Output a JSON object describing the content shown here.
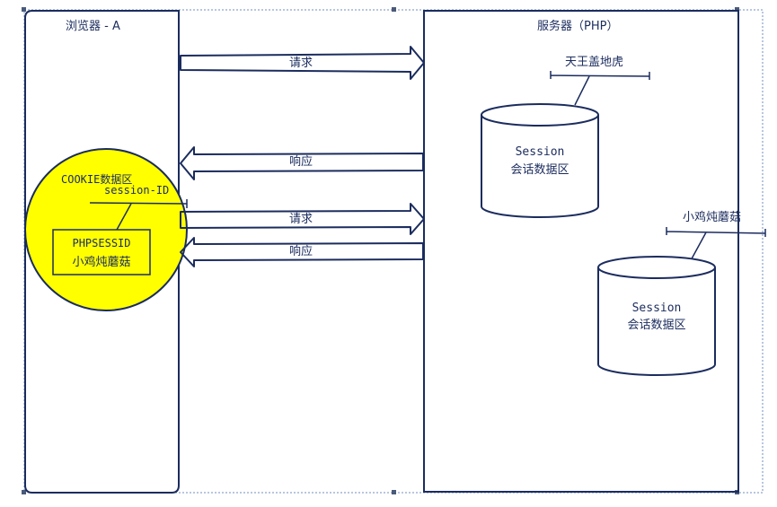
{
  "browser": {
    "title": "浏览器 - A",
    "cookie_area": {
      "label": "COOKIE数据区",
      "key_label": "session-ID",
      "entry": {
        "name": "PHPSESSID",
        "value": "小鸡炖蘑菇"
      }
    }
  },
  "server": {
    "title": "服务器（PHP）",
    "stores": [
      {
        "tag": "天王盖地虎",
        "line1": "Session",
        "line2": "会话数据区"
      },
      {
        "tag": "小鸡炖蘑菇",
        "line1": "Session",
        "line2": "会话数据区"
      }
    ]
  },
  "arrows": [
    {
      "label": "请求",
      "direction": "right"
    },
    {
      "label": "响应",
      "direction": "left"
    },
    {
      "label": "请求",
      "direction": "right"
    },
    {
      "label": "响应",
      "direction": "left"
    }
  ],
  "colors": {
    "line": "#1b2c5e",
    "cookie_fill": "#ffff00",
    "frame": "#6f8fc0",
    "handle": "#4a5a7a"
  }
}
